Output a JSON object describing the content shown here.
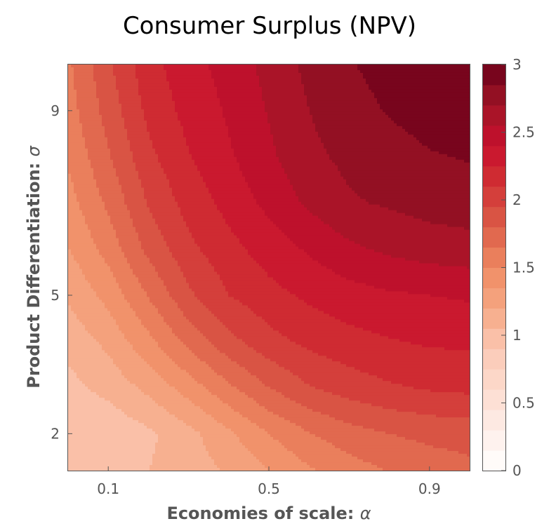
{
  "chart_data": {
    "type": "heatmap",
    "title": "Consumer Surplus (NPV)",
    "xlabel": "Economies of scale: ",
    "xlabel_symbol": "α",
    "ylabel": "Product Differentiation: ",
    "ylabel_symbol": "σ",
    "x_ticks": [
      0.1,
      0.5,
      0.9
    ],
    "x_tick_labels": [
      "0.1",
      "0.5",
      "0.9"
    ],
    "y_ticks": [
      2,
      5,
      9
    ],
    "y_tick_labels": [
      "2",
      "5",
      "9"
    ],
    "xlim": [
      0.0,
      1.0
    ],
    "ylim": [
      1.2,
      10.0
    ],
    "x_grid": [
      0.0,
      0.1,
      0.2,
      0.3,
      0.4,
      0.5,
      0.6,
      0.7,
      0.8,
      0.9,
      1.0
    ],
    "y_grid": [
      1.2,
      2,
      3,
      4,
      5,
      6,
      7,
      8,
      9,
      10
    ],
    "z": [
      [
        0.95,
        1.0,
        1.05,
        1.12,
        1.22,
        1.35,
        1.48,
        1.58,
        1.66,
        1.72,
        1.76
      ],
      [
        0.95,
        0.93,
        1.02,
        1.15,
        1.32,
        1.5,
        1.64,
        1.74,
        1.8,
        1.84,
        1.86
      ],
      [
        1.0,
        1.1,
        1.24,
        1.42,
        1.62,
        1.8,
        1.94,
        2.02,
        2.08,
        2.12,
        2.14
      ],
      [
        1.1,
        1.24,
        1.46,
        1.7,
        1.9,
        2.05,
        2.14,
        2.2,
        2.24,
        2.27,
        2.28
      ],
      [
        1.22,
        1.4,
        1.66,
        1.92,
        2.1,
        2.2,
        2.28,
        2.34,
        2.38,
        2.4,
        2.42
      ],
      [
        1.34,
        1.56,
        1.84,
        2.06,
        2.2,
        2.32,
        2.42,
        2.52,
        2.58,
        2.62,
        2.64
      ],
      [
        1.44,
        1.68,
        1.96,
        2.16,
        2.3,
        2.44,
        2.58,
        2.68,
        2.72,
        2.76,
        2.78
      ],
      [
        1.52,
        1.78,
        2.06,
        2.24,
        2.38,
        2.52,
        2.66,
        2.74,
        2.8,
        2.84,
        2.86
      ],
      [
        1.58,
        1.86,
        2.14,
        2.3,
        2.42,
        2.56,
        2.7,
        2.8,
        2.86,
        2.9,
        2.92
      ],
      [
        1.62,
        1.92,
        2.2,
        2.34,
        2.46,
        2.6,
        2.74,
        2.84,
        2.9,
        2.94,
        2.96
      ]
    ],
    "colorbar": {
      "min": 0,
      "max": 3,
      "step": 0.15,
      "ticks": [
        0,
        0.5,
        1,
        1.5,
        2,
        2.5,
        3
      ],
      "tick_labels": [
        "0",
        "0.5",
        "1",
        "1.5",
        "2",
        "2.5",
        "3"
      ]
    },
    "colormap": [
      {
        "v": 0.0,
        "c": "#ffffff"
      },
      {
        "v": 0.15,
        "c": "#fde5dc"
      },
      {
        "v": 0.3,
        "c": "#fbc8b4"
      },
      {
        "v": 0.4,
        "c": "#f5a884"
      },
      {
        "v": 0.5,
        "c": "#ef8a62"
      },
      {
        "v": 0.6,
        "c": "#dc5e49"
      },
      {
        "v": 0.72,
        "c": "#cf2d32"
      },
      {
        "v": 0.8,
        "c": "#c8102e"
      },
      {
        "v": 0.9,
        "c": "#a01526"
      },
      {
        "v": 1.0,
        "c": "#6a001a"
      }
    ]
  }
}
